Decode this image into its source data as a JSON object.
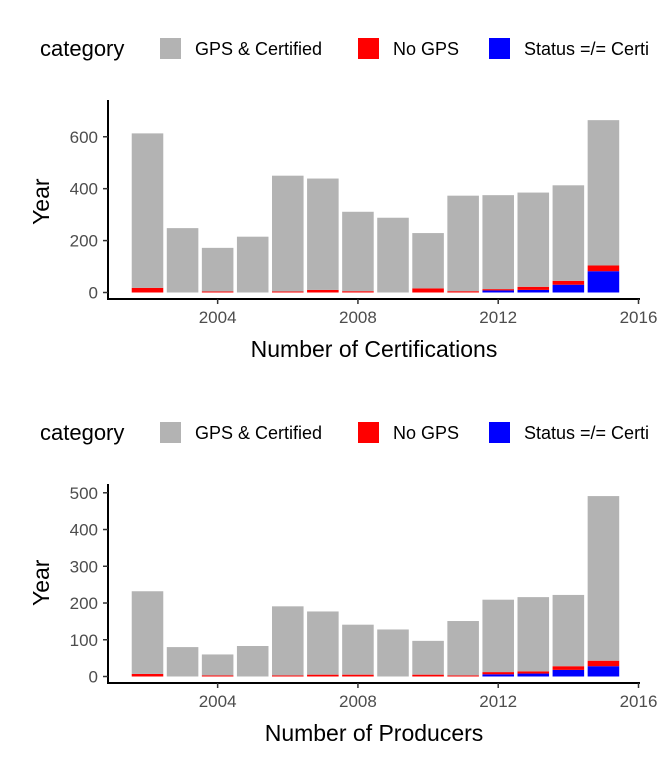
{
  "chart_data": [
    {
      "type": "bar",
      "stacked": true,
      "xlabel": "Number of Certifications",
      "ylabel": "Year",
      "legend_title": "category",
      "legend_position": "top",
      "grid": false,
      "x": [
        2002,
        2003,
        2004,
        2005,
        2006,
        2007,
        2008,
        2009,
        2010,
        2011,
        2012,
        2013,
        2014,
        2015
      ],
      "xticks": [
        2004,
        2008,
        2012,
        2016
      ],
      "xlim": [
        2001,
        2016
      ],
      "yticks": [
        0,
        200,
        400,
        600
      ],
      "ylim": [
        0,
        700
      ],
      "series": [
        {
          "name": "Status =/= Certi",
          "color": "#0000FF",
          "values": [
            0,
            0,
            0,
            0,
            0,
            0,
            0,
            0,
            0,
            0,
            8,
            10,
            30,
            82
          ]
        },
        {
          "name": "No GPS",
          "color": "#FF0000",
          "values": [
            18,
            0,
            4,
            0,
            4,
            10,
            5,
            0,
            16,
            5,
            5,
            12,
            15,
            22
          ]
        },
        {
          "name": "GPS & Certified",
          "color": "#B3B3B3",
          "values": [
            595,
            248,
            168,
            215,
            446,
            429,
            306,
            288,
            213,
            368,
            362,
            363,
            368,
            560
          ]
        }
      ]
    },
    {
      "type": "bar",
      "stacked": true,
      "xlabel": "Number of Producers",
      "ylabel": "Year",
      "legend_title": "category",
      "legend_position": "top",
      "grid": false,
      "x": [
        2002,
        2003,
        2004,
        2005,
        2006,
        2007,
        2008,
        2009,
        2010,
        2011,
        2012,
        2013,
        2014,
        2015
      ],
      "xticks": [
        2004,
        2008,
        2012,
        2016
      ],
      "xlim": [
        2001,
        2016
      ],
      "yticks": [
        0,
        100,
        200,
        300,
        400,
        500
      ],
      "ylim": [
        0,
        510
      ],
      "series": [
        {
          "name": "Status =/= Certi",
          "color": "#0000FF",
          "values": [
            0,
            0,
            0,
            0,
            0,
            0,
            0,
            0,
            0,
            0,
            6,
            8,
            18,
            28
          ]
        },
        {
          "name": "No GPS",
          "color": "#FF0000",
          "values": [
            7,
            0,
            3,
            0,
            3,
            5,
            5,
            0,
            5,
            3,
            6,
            6,
            10,
            15
          ]
        },
        {
          "name": "GPS & Certified",
          "color": "#B3B3B3",
          "values": [
            225,
            80,
            57,
            83,
            188,
            172,
            136,
            128,
            92,
            148,
            197,
            202,
            194,
            448
          ]
        }
      ]
    }
  ]
}
